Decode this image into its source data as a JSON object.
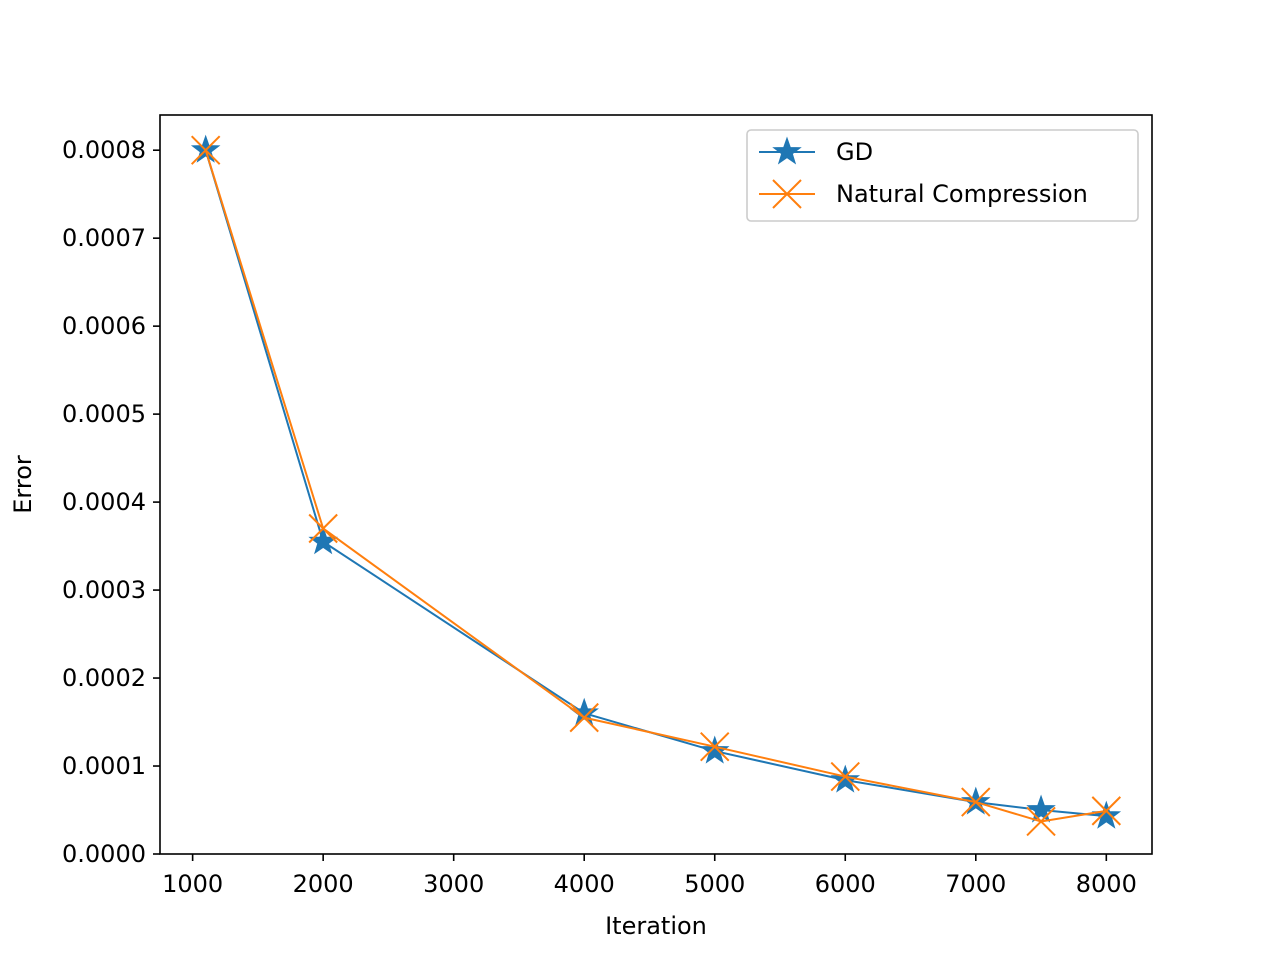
{
  "chart_data": {
    "type": "line",
    "title": "",
    "xlabel": "Iteration",
    "ylabel": "Error",
    "xlim": [
      750,
      8350
    ],
    "ylim": [
      0,
      0.00084
    ],
    "xticks": [
      1000,
      2000,
      3000,
      4000,
      5000,
      6000,
      7000,
      8000
    ],
    "xtick_labels": [
      "1000",
      "2000",
      "3000",
      "4000",
      "5000",
      "6000",
      "7000",
      "8000"
    ],
    "yticks": [
      0,
      0.0001,
      0.0002,
      0.0003,
      0.0004,
      0.0005,
      0.0006,
      0.0007,
      0.0008
    ],
    "ytick_labels": [
      "0.0000",
      "0.0001",
      "0.0002",
      "0.0003",
      "0.0004",
      "0.0005",
      "0.0006",
      "0.0007",
      "0.0008"
    ],
    "x": [
      1100,
      2000,
      4000,
      5000,
      6000,
      7000,
      7500,
      8000
    ],
    "grid": false,
    "legend_position": "top-right",
    "series": [
      {
        "name": "GD",
        "color": "#1f77b4",
        "marker": "star",
        "values": [
          0.0008,
          0.000355,
          0.00016,
          0.000117,
          8.4e-05,
          5.9e-05,
          5e-05,
          4.3e-05
        ]
      },
      {
        "name": "Natural Compression",
        "color": "#ff7f0e",
        "marker": "x",
        "values": [
          0.0008,
          0.00037,
          0.000155,
          0.000122,
          8.8e-05,
          5.9e-05,
          3.7e-05,
          4.9e-05
        ]
      }
    ]
  }
}
